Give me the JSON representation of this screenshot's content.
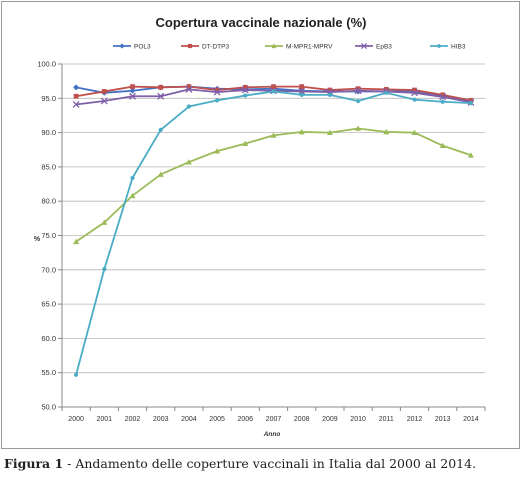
{
  "chart_data": {
    "type": "line",
    "title": "Copertura vaccinale nazionale (%)",
    "xlabel": "Anno",
    "ylabel": "%",
    "ylim": [
      50.0,
      100.0
    ],
    "yticks": [
      "50.0",
      "55.0",
      "60.0",
      "65.0",
      "70.0",
      "75.0",
      "80.0",
      "85.0",
      "90.0",
      "95.0",
      "100.0"
    ],
    "categories": [
      "2000",
      "2001",
      "2002",
      "2003",
      "2004",
      "2005",
      "2006",
      "2007",
      "2008",
      "2009",
      "2010",
      "2011",
      "2012",
      "2013",
      "2014"
    ],
    "grid": true,
    "legend_position": "top",
    "series": [
      {
        "name": "POL3",
        "color": "#4472c4",
        "marker": "diamond",
        "values": [
          96.6,
          95.8,
          96.1,
          96.6,
          96.7,
          96.4,
          96.3,
          96.4,
          96.1,
          96.0,
          96.0,
          96.0,
          96.0,
          95.3,
          94.6
        ]
      },
      {
        "name": "DT-DTP3",
        "color": "#c0504d",
        "marker": "square",
        "values": [
          95.3,
          96.0,
          96.7,
          96.6,
          96.7,
          96.2,
          96.6,
          96.7,
          96.7,
          96.2,
          96.4,
          96.3,
          96.2,
          95.5,
          94.7
        ]
      },
      {
        "name": "M-MPR1-MPRV",
        "color": "#9bbb59",
        "marker": "triangle",
        "values": [
          74.1,
          76.9,
          80.8,
          83.9,
          85.7,
          87.3,
          88.4,
          89.6,
          90.1,
          90.0,
          90.6,
          90.1,
          90.0,
          88.1,
          86.7
        ]
      },
      {
        "name": "EpB3",
        "color": "#7f5fa8",
        "marker": "x",
        "values": [
          94.1,
          94.6,
          95.3,
          95.3,
          96.3,
          95.9,
          96.2,
          96.1,
          96.0,
          95.9,
          96.1,
          96.0,
          95.8,
          95.2,
          94.4
        ]
      },
      {
        "name": "HIB3",
        "color": "#4bacc6",
        "marker": "circle",
        "values": [
          54.7,
          70.1,
          83.4,
          90.4,
          93.8,
          94.7,
          95.4,
          96.0,
          95.5,
          95.5,
          94.6,
          95.8,
          94.8,
          94.5,
          94.3
        ]
      }
    ]
  },
  "caption": {
    "label": "Figura 1",
    "text": " - Andamento delle coperture vaccinali in Italia dal 2000 al 2014."
  }
}
